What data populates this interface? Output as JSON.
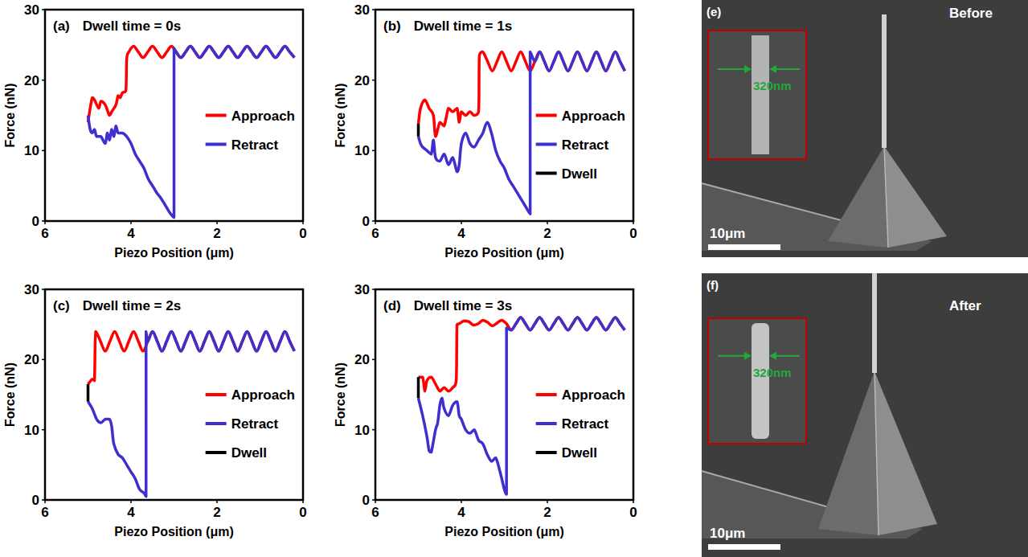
{
  "chart_data": [
    {
      "type": "line",
      "panel": "(a)",
      "title": "Dwell time = 0s",
      "x_label": "Piezo Position (μm)",
      "y_label": "Force (nN)",
      "xlim": [
        6,
        0
      ],
      "xticks": [
        6,
        4,
        2,
        0
      ],
      "ylim": [
        0,
        30
      ],
      "yticks": [
        0,
        10,
        20,
        30
      ],
      "grid": false,
      "legend": "right",
      "series": [
        {
          "name": "Approach",
          "color": "#ff0000",
          "x": [
            0.2,
            0.31,
            0.42,
            0.53,
            0.64,
            0.75,
            0.86,
            0.97,
            1.08,
            1.19,
            1.3,
            1.41,
            1.52,
            1.63,
            1.74,
            1.85,
            1.96,
            2.07,
            2.18,
            2.29,
            2.4,
            2.51,
            2.62,
            2.73,
            2.84,
            2.95,
            3.06,
            3.17,
            3.28,
            3.39,
            3.5,
            3.61,
            3.72,
            3.83,
            3.94,
            4.05,
            4.1,
            4.12,
            4.2,
            4.25,
            4.3,
            4.35,
            4.45,
            4.5,
            4.6,
            4.7,
            4.75,
            4.85,
            4.9,
            4.95,
            5
          ],
          "values": [
            23.2,
            24,
            24.8,
            24,
            23.2,
            24,
            24.8,
            24,
            23.2,
            24,
            24.8,
            24,
            23.2,
            24,
            24.8,
            24,
            23.2,
            24,
            24.8,
            24,
            23.2,
            24,
            24.8,
            24,
            23.2,
            24,
            24.8,
            24,
            23.2,
            24,
            24.8,
            24,
            23.2,
            24,
            24.8,
            24,
            23,
            18.5,
            18.2,
            17.5,
            17.8,
            16.5,
            15.5,
            15,
            16.5,
            17,
            16,
            17.2,
            17.5,
            16,
            14
          ]
        },
        {
          "name": "Retract",
          "color": "#3f2fcf",
          "x": [
            5,
            4.95,
            4.9,
            4.85,
            4.8,
            4.7,
            4.6,
            4.55,
            4.5,
            4.45,
            4.4,
            4.35,
            4.3,
            4.2,
            4.1,
            4,
            3.9,
            3.8,
            3.7,
            3.6,
            3.5,
            3.4,
            3.3,
            3.2,
            3.1,
            3,
            3,
            2.95,
            2.84,
            2.73,
            2.62,
            2.51,
            2.4,
            2.29,
            2.18,
            2.07,
            1.96,
            1.85,
            1.74,
            1.63,
            1.52,
            1.41,
            1.3,
            1.19,
            1.08,
            0.97,
            0.86,
            0.75,
            0.64,
            0.53,
            0.42,
            0.31,
            0.2
          ],
          "values": [
            15,
            13,
            12.5,
            13,
            12,
            12,
            11,
            12.5,
            11.5,
            13,
            12,
            13.5,
            12.5,
            12.5,
            12,
            11,
            9.5,
            8.5,
            7.5,
            6,
            5,
            4,
            3.2,
            2.2,
            1.2,
            0.5,
            24.5,
            24,
            23.2,
            24,
            24.8,
            24,
            23.2,
            24,
            24.8,
            24,
            23.2,
            24,
            24.8,
            24,
            23.2,
            24,
            24.8,
            24,
            23.2,
            24,
            24.8,
            24,
            23.2,
            24,
            24.8,
            24,
            23.2
          ]
        }
      ]
    },
    {
      "type": "line",
      "panel": "(b)",
      "title": "Dwell time = 1s",
      "x_label": "Piezo Position (μm)",
      "y_label": "Force (nN)",
      "xlim": [
        6,
        0
      ],
      "xticks": [
        6,
        4,
        2,
        0
      ],
      "ylim": [
        0,
        30
      ],
      "yticks": [
        0,
        10,
        20,
        30
      ],
      "grid": false,
      "legend": "right",
      "series": [
        {
          "name": "Approach",
          "color": "#ff0000",
          "x": [
            0.2,
            0.31,
            0.42,
            0.53,
            0.64,
            0.75,
            0.86,
            0.97,
            1.08,
            1.19,
            1.3,
            1.41,
            1.52,
            1.63,
            1.74,
            1.85,
            1.96,
            2.07,
            2.18,
            2.29,
            2.4,
            2.51,
            2.62,
            2.73,
            2.84,
            2.95,
            3.06,
            3.17,
            3.28,
            3.39,
            3.5,
            3.58,
            3.6,
            3.7,
            3.8,
            3.9,
            4,
            4.05,
            4.1,
            4.2,
            4.3,
            4.4,
            4.5,
            4.6,
            4.65,
            4.75,
            4.85,
            4.95,
            5
          ],
          "values": [
            21.3,
            22.65,
            24,
            22.65,
            21.3,
            22.65,
            24,
            22.65,
            21.3,
            22.65,
            24,
            22.65,
            21.3,
            22.65,
            24,
            22.65,
            21.3,
            22.65,
            24,
            22.65,
            21.3,
            22.65,
            24,
            22.65,
            21.3,
            22.65,
            24,
            22.65,
            21.3,
            22.65,
            24,
            23.5,
            15.5,
            15,
            15.5,
            15,
            15.5,
            14,
            16,
            15.5,
            16,
            13.5,
            14,
            12,
            15,
            16,
            17.2,
            16,
            13.8
          ]
        },
        {
          "name": "Retract",
          "color": "#3f2fcf",
          "x": [
            5,
            4.95,
            4.9,
            4.8,
            4.7,
            4.65,
            4.6,
            4.5,
            4.4,
            4.3,
            4.2,
            4.1,
            4.05,
            4,
            3.9,
            3.8,
            3.7,
            3.6,
            3.5,
            3.4,
            3.3,
            3.2,
            3.1,
            3,
            2.9,
            2.8,
            2.7,
            2.6,
            2.5,
            2.4,
            2.4,
            2.29,
            2.18,
            2.07,
            1.96,
            1.85,
            1.74,
            1.63,
            1.52,
            1.41,
            1.3,
            1.19,
            1.08,
            0.97,
            0.86,
            0.75,
            0.64,
            0.53,
            0.42,
            0.31,
            0.2
          ],
          "values": [
            12,
            11,
            10.5,
            10,
            9.5,
            11.5,
            9,
            8.5,
            9.5,
            8,
            9,
            7,
            8,
            11,
            12.5,
            11,
            10.5,
            11.5,
            12.5,
            14,
            12.5,
            10,
            8.5,
            7.5,
            6,
            5,
            4,
            3,
            2,
            1,
            24,
            22.65,
            24,
            22.65,
            21.3,
            22.65,
            24,
            22.65,
            21.3,
            22.65,
            24,
            22.65,
            21.3,
            22.65,
            24,
            22.65,
            21.3,
            22.65,
            24,
            22.65,
            21.3
          ]
        },
        {
          "name": "Dwell",
          "color": "#000000",
          "x": [
            5,
            5
          ],
          "values": [
            13.8,
            12
          ]
        }
      ]
    },
    {
      "type": "line",
      "panel": "(c)",
      "title": "Dwell time = 2s",
      "x_label": "Piezo Position (μm)",
      "y_label": "Force (nN)",
      "xlim": [
        6,
        0
      ],
      "xticks": [
        6,
        4,
        2,
        0
      ],
      "ylim": [
        0,
        30
      ],
      "yticks": [
        0,
        10,
        20,
        30
      ],
      "grid": false,
      "legend": "right",
      "series": [
        {
          "name": "Approach",
          "color": "#ff0000",
          "x": [
            0.2,
            0.31,
            0.42,
            0.53,
            0.64,
            0.75,
            0.86,
            0.97,
            1.08,
            1.19,
            1.3,
            1.41,
            1.52,
            1.63,
            1.74,
            1.85,
            1.96,
            2.07,
            2.18,
            2.29,
            2.4,
            2.51,
            2.62,
            2.73,
            2.84,
            2.95,
            3.06,
            3.17,
            3.28,
            3.39,
            3.5,
            3.61,
            3.72,
            3.83,
            3.94,
            4.05,
            4.16,
            4.27,
            4.38,
            4.49,
            4.6,
            4.71,
            4.82,
            4.85,
            4.9,
            5
          ],
          "values": [
            21.2,
            22.6,
            24,
            22.6,
            21.2,
            22.6,
            24,
            22.6,
            21.2,
            22.6,
            24,
            22.6,
            21.2,
            22.6,
            24,
            22.6,
            21.2,
            22.6,
            24,
            22.6,
            21.2,
            22.6,
            24,
            22.6,
            21.2,
            22.6,
            24,
            22.6,
            21.2,
            22.6,
            24,
            22.6,
            21.2,
            22.6,
            24,
            22.6,
            21.2,
            22.6,
            24,
            22.6,
            21.2,
            22.6,
            24,
            17,
            17.2,
            16.5
          ]
        },
        {
          "name": "Retract",
          "color": "#3f2fcf",
          "x": [
            5,
            4.9,
            4.8,
            4.7,
            4.6,
            4.5,
            4.45,
            4.4,
            4.3,
            4.2,
            4.1,
            4,
            3.9,
            3.8,
            3.7,
            3.65,
            3.65,
            3.61,
            3.5,
            3.39,
            3.28,
            3.17,
            3.06,
            2.95,
            2.84,
            2.73,
            2.62,
            2.51,
            2.4,
            2.29,
            2.18,
            2.07,
            1.96,
            1.85,
            1.74,
            1.63,
            1.52,
            1.41,
            1.3,
            1.19,
            1.08,
            0.97,
            0.86,
            0.75,
            0.64,
            0.53,
            0.42,
            0.31,
            0.2
          ],
          "values": [
            14,
            13,
            11.5,
            11,
            11.5,
            11.5,
            10.5,
            8,
            6.5,
            6,
            5,
            4,
            3,
            1.5,
            1,
            0.5,
            24,
            22.6,
            24,
            22.6,
            21.2,
            22.6,
            24,
            22.6,
            21.2,
            22.6,
            24,
            22.6,
            21.2,
            22.6,
            24,
            22.6,
            21.2,
            22.6,
            24,
            22.6,
            21.2,
            22.6,
            24,
            22.6,
            21.2,
            22.6,
            24,
            22.6,
            21.2,
            22.6,
            24,
            22.6,
            21.2
          ]
        },
        {
          "name": "Dwell",
          "color": "#000000",
          "x": [
            5,
            5
          ],
          "values": [
            16.5,
            14
          ]
        }
      ]
    },
    {
      "type": "line",
      "panel": "(d)",
      "title": "Dwell time = 3s",
      "x_label": "Piezo Position (μm)",
      "y_label": "Force (nN)",
      "xlim": [
        6,
        0
      ],
      "xticks": [
        6,
        4,
        2,
        0
      ],
      "ylim": [
        0,
        30
      ],
      "yticks": [
        0,
        10,
        20,
        30
      ],
      "grid": false,
      "legend": "right",
      "series": [
        {
          "name": "Approach",
          "color": "#ff0000",
          "x": [
            0.2,
            0.31,
            0.42,
            0.53,
            0.64,
            0.75,
            0.86,
            0.97,
            1.08,
            1.19,
            1.3,
            1.41,
            1.52,
            1.63,
            1.74,
            1.85,
            1.96,
            2.07,
            2.18,
            2.29,
            2.4,
            2.51,
            2.62,
            2.73,
            2.84,
            2.95,
            3.06,
            3.17,
            3.28,
            3.39,
            3.5,
            3.61,
            3.72,
            3.83,
            3.94,
            4.05,
            4.1,
            4.12,
            4.2,
            4.3,
            4.4,
            4.5,
            4.6,
            4.7,
            4.8,
            4.85,
            4.9,
            5
          ],
          "values": [
            24.2,
            25.1,
            26,
            25.1,
            24.2,
            25.1,
            26,
            25.1,
            24.2,
            25.1,
            26,
            25.1,
            24.2,
            25.1,
            26,
            25.1,
            24.2,
            25.1,
            26,
            25.1,
            24.2,
            25.1,
            26,
            25.1,
            24.2,
            25.1,
            25.6,
            25.2,
            24.8,
            25.3,
            25.6,
            25.1,
            24.9,
            25.4,
            25.5,
            25.1,
            25,
            17,
            16,
            15.5,
            16,
            15.5,
            16.5,
            17.5,
            17,
            15.5,
            17.5,
            17.5
          ]
        },
        {
          "name": "Retract",
          "color": "#3f2fcf",
          "x": [
            5,
            4.9,
            4.8,
            4.75,
            4.7,
            4.6,
            4.55,
            4.5,
            4.45,
            4.4,
            4.3,
            4.2,
            4.1,
            4.05,
            4,
            3.9,
            3.8,
            3.7,
            3.6,
            3.5,
            3.4,
            3.3,
            3.2,
            3.1,
            3,
            2.95,
            2.95,
            2.84,
            2.73,
            2.62,
            2.51,
            2.4,
            2.29,
            2.18,
            2.07,
            1.96,
            1.85,
            1.74,
            1.63,
            1.52,
            1.41,
            1.3,
            1.19,
            1.08,
            0.97,
            0.86,
            0.75,
            0.64,
            0.53,
            0.42,
            0.31,
            0.2
          ],
          "values": [
            14.5,
            12,
            9,
            7,
            6.8,
            10,
            11,
            13.5,
            14.5,
            13,
            12,
            13.5,
            14,
            12,
            11.5,
            10,
            9.5,
            10,
            8.5,
            8,
            6.5,
            5.5,
            6,
            4,
            1.5,
            0.8,
            24.5,
            24.2,
            25.1,
            26,
            25.1,
            24.2,
            25.1,
            26,
            25.1,
            24.2,
            25.1,
            26,
            25.1,
            24.2,
            25.1,
            26,
            25.1,
            24.2,
            25.1,
            26,
            25.1,
            24.2,
            25.1,
            26,
            25.1,
            24.2
          ]
        },
        {
          "name": "Dwell",
          "color": "#000000",
          "x": [
            5,
            5
          ],
          "values": [
            17.5,
            14.5
          ]
        }
      ]
    }
  ],
  "micrographs": [
    {
      "panel": "(e)",
      "caption": "Before",
      "inset_width": "320nm",
      "scale_bar": "10μm"
    },
    {
      "panel": "(f)",
      "caption": "After",
      "inset_width": "320nm",
      "scale_bar": "10μm"
    }
  ]
}
